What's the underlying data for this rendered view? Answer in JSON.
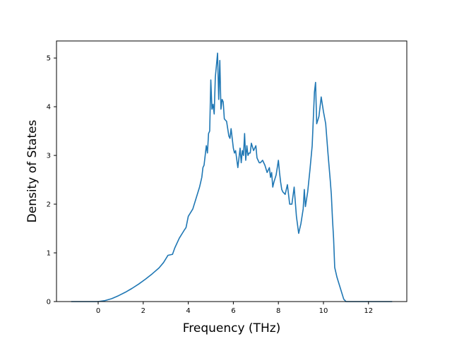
{
  "chart_data": {
    "type": "line",
    "title": "",
    "xlabel": "Frequency (THz)",
    "ylabel": "Density of States",
    "xlim": [
      -1.85,
      13.7
    ],
    "ylim": [
      0,
      5.35
    ],
    "xticks": [
      0,
      2,
      4,
      6,
      8,
      10,
      12
    ],
    "yticks": [
      0,
      1,
      2,
      3,
      4,
      5
    ],
    "grid": false,
    "legend": "none",
    "line_color": "#1f77b4",
    "series": [
      {
        "x": [
          -1.2,
          -0.6,
          0.0,
          0.3,
          0.6,
          0.9,
          1.2,
          1.5,
          1.8,
          2.1,
          2.4,
          2.7,
          2.9,
          3.1,
          3.3,
          3.4,
          3.6,
          3.8,
          3.9,
          4.0,
          4.2,
          4.3,
          4.4,
          4.5,
          4.6,
          4.65,
          4.7,
          4.8,
          4.85,
          4.9,
          4.95,
          5.0,
          5.05,
          5.1,
          5.15,
          5.2,
          5.3,
          5.35,
          5.4,
          5.45,
          5.5,
          5.55,
          5.6,
          5.7,
          5.8,
          5.85,
          5.9,
          6.0,
          6.05,
          6.1,
          6.2,
          6.3,
          6.35,
          6.4,
          6.45,
          6.5,
          6.55,
          6.6,
          6.65,
          6.7,
          6.75,
          6.8,
          6.9,
          7.0,
          7.05,
          7.1,
          7.15,
          7.2,
          7.3,
          7.4,
          7.5,
          7.6,
          7.65,
          7.7,
          7.75,
          7.8,
          7.9,
          8.0,
          8.05,
          8.1,
          8.15,
          8.2,
          8.3,
          8.4,
          8.5,
          8.6,
          8.7,
          8.8,
          8.9,
          8.95,
          9.0,
          9.1,
          9.15,
          9.2,
          9.3,
          9.4,
          9.5,
          9.6,
          9.65,
          9.7,
          9.8,
          9.9,
          10.0,
          10.1,
          10.2,
          10.3,
          10.35,
          10.4,
          10.45,
          10.5,
          10.6,
          10.7,
          10.8,
          10.9,
          11.0,
          11.2,
          11.3,
          11.4,
          11.5,
          11.6,
          11.7,
          11.8,
          11.9,
          12.0,
          12.5,
          13.05
        ],
        "y": [
          0.0,
          0.0,
          0.0,
          0.02,
          0.06,
          0.12,
          0.19,
          0.27,
          0.36,
          0.46,
          0.57,
          0.69,
          0.8,
          0.95,
          0.97,
          1.1,
          1.3,
          1.45,
          1.52,
          1.75,
          1.9,
          2.05,
          2.2,
          2.35,
          2.55,
          2.75,
          2.8,
          3.2,
          3.05,
          3.45,
          3.5,
          4.55,
          3.95,
          4.05,
          3.85,
          4.6,
          5.1,
          4.15,
          4.95,
          3.95,
          4.15,
          4.1,
          3.75,
          3.7,
          3.4,
          3.35,
          3.55,
          3.15,
          3.05,
          3.1,
          2.75,
          3.15,
          2.85,
          3.1,
          3.0,
          3.45,
          2.9,
          3.2,
          3.0,
          3.05,
          3.05,
          3.25,
          3.1,
          3.2,
          2.95,
          2.9,
          2.85,
          2.85,
          2.9,
          2.8,
          2.65,
          2.75,
          2.55,
          2.65,
          2.35,
          2.45,
          2.6,
          2.9,
          2.65,
          2.45,
          2.3,
          2.25,
          2.2,
          2.4,
          2.0,
          2.0,
          2.35,
          1.75,
          1.4,
          1.5,
          1.6,
          1.9,
          2.3,
          1.95,
          2.25,
          2.7,
          3.2,
          4.3,
          4.5,
          3.65,
          3.8,
          4.2,
          3.9,
          3.65,
          3.05,
          2.5,
          2.2,
          1.7,
          1.3,
          0.7,
          0.5,
          0.35,
          0.2,
          0.05,
          0.0,
          0.0,
          0.0,
          0.0,
          0.0,
          0.0,
          0.0,
          0.0,
          0.0,
          0.0,
          0.0,
          0.0
        ]
      }
    ]
  }
}
